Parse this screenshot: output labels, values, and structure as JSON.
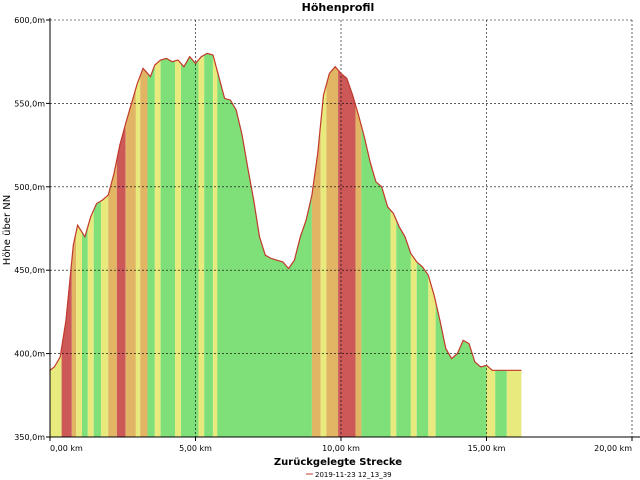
{
  "chart_data": {
    "type": "area",
    "title": "Höhenprofil",
    "xlabel": "Zurückgelegte Strecke",
    "ylabel": "Höhe über NN",
    "xlim": [
      0,
      20
    ],
    "ylim": [
      350,
      600
    ],
    "x_ticks": [
      0,
      5,
      10,
      15,
      20
    ],
    "x_tick_labels": [
      "0,00 km",
      "5,00 km",
      "10,00 km",
      "15,00 km",
      "20,00 km"
    ],
    "y_ticks": [
      350,
      400,
      450,
      500,
      550,
      600
    ],
    "y_tick_labels": [
      "350,0m",
      "400,0m",
      "450,0m",
      "500,0m",
      "550,0m",
      "600,0m"
    ],
    "grid": true,
    "legend": {
      "position": "bottom-center",
      "entries": [
        {
          "label": "2019-11-23 12_13_39",
          "color": "#c0392b"
        }
      ]
    },
    "colors": {
      "line": "#c0392b",
      "green": "#7fe07a",
      "yellow": "#e8ea7e",
      "red": "#cc5858",
      "orange": "#e2b564"
    },
    "series": [
      {
        "x": [
          0.0,
          0.15,
          0.35,
          0.55,
          0.8,
          0.95,
          1.2,
          1.4,
          1.6,
          1.8,
          2.0,
          2.2,
          2.4,
          2.6,
          2.8,
          3.0,
          3.2,
          3.45,
          3.6,
          3.8,
          4.0,
          4.2,
          4.4,
          4.6,
          4.8,
          5.0,
          5.2,
          5.4,
          5.6,
          5.8,
          6.0,
          6.2,
          6.4,
          6.6,
          6.8,
          7.0,
          7.2,
          7.4,
          7.6,
          7.8,
          8.0,
          8.2,
          8.4,
          8.6,
          8.8,
          9.0,
          9.2,
          9.4,
          9.6,
          9.8,
          10.0,
          10.2,
          10.4,
          10.6,
          10.8,
          11.0,
          11.2,
          11.4,
          11.6,
          11.8,
          12.0,
          12.2,
          12.4,
          12.6,
          12.8,
          13.0,
          13.2,
          13.4,
          13.6,
          13.8,
          14.0,
          14.2,
          14.4,
          14.6,
          14.8,
          15.0,
          15.2,
          15.4,
          15.6,
          15.8,
          16.0,
          16.2
        ],
        "y": [
          390,
          392,
          398,
          420,
          465,
          477,
          470,
          482,
          490,
          492,
          495,
          508,
          525,
          538,
          550,
          562,
          571,
          566,
          573,
          576,
          577,
          575,
          576,
          572,
          578,
          574,
          578,
          580,
          579,
          566,
          553,
          552,
          546,
          531,
          511,
          492,
          470,
          459,
          457,
          456,
          455,
          451,
          456,
          470,
          480,
          495,
          520,
          555,
          568,
          572,
          568,
          565,
          555,
          543,
          530,
          515,
          503,
          500,
          488,
          484,
          476,
          470,
          460,
          455,
          452,
          447,
          435,
          420,
          403,
          397,
          400,
          408,
          406,
          395,
          392,
          393,
          390,
          390,
          390,
          390,
          390,
          390
        ],
        "color_bands": [
          {
            "x0": 0.0,
            "x1": 0.4,
            "c": "yellow"
          },
          {
            "x0": 0.4,
            "x1": 0.75,
            "c": "red"
          },
          {
            "x0": 0.75,
            "x1": 0.9,
            "c": "orange"
          },
          {
            "x0": 0.9,
            "x1": 1.1,
            "c": "yellow"
          },
          {
            "x0": 1.1,
            "x1": 1.3,
            "c": "green"
          },
          {
            "x0": 1.3,
            "x1": 1.5,
            "c": "yellow"
          },
          {
            "x0": 1.5,
            "x1": 1.75,
            "c": "green"
          },
          {
            "x0": 1.75,
            "x1": 2.0,
            "c": "yellow"
          },
          {
            "x0": 2.0,
            "x1": 2.3,
            "c": "orange"
          },
          {
            "x0": 2.3,
            "x1": 2.6,
            "c": "red"
          },
          {
            "x0": 2.6,
            "x1": 2.95,
            "c": "orange"
          },
          {
            "x0": 2.95,
            "x1": 3.1,
            "c": "yellow"
          },
          {
            "x0": 3.1,
            "x1": 3.35,
            "c": "orange"
          },
          {
            "x0": 3.35,
            "x1": 3.6,
            "c": "green"
          },
          {
            "x0": 3.6,
            "x1": 3.8,
            "c": "yellow"
          },
          {
            "x0": 3.8,
            "x1": 4.3,
            "c": "green"
          },
          {
            "x0": 4.3,
            "x1": 4.5,
            "c": "yellow"
          },
          {
            "x0": 4.5,
            "x1": 5.1,
            "c": "green"
          },
          {
            "x0": 5.1,
            "x1": 5.3,
            "c": "yellow"
          },
          {
            "x0": 5.3,
            "x1": 5.6,
            "c": "green"
          },
          {
            "x0": 5.6,
            "x1": 5.75,
            "c": "yellow"
          },
          {
            "x0": 5.75,
            "x1": 9.0,
            "c": "green"
          },
          {
            "x0": 9.0,
            "x1": 9.3,
            "c": "orange"
          },
          {
            "x0": 9.3,
            "x1": 9.5,
            "c": "yellow"
          },
          {
            "x0": 9.5,
            "x1": 9.9,
            "c": "orange"
          },
          {
            "x0": 9.9,
            "x1": 10.5,
            "c": "red"
          },
          {
            "x0": 10.5,
            "x1": 10.7,
            "c": "orange"
          },
          {
            "x0": 10.7,
            "x1": 11.7,
            "c": "green"
          },
          {
            "x0": 11.7,
            "x1": 11.9,
            "c": "yellow"
          },
          {
            "x0": 11.9,
            "x1": 12.4,
            "c": "green"
          },
          {
            "x0": 12.4,
            "x1": 12.6,
            "c": "yellow"
          },
          {
            "x0": 12.6,
            "x1": 13.0,
            "c": "green"
          },
          {
            "x0": 13.0,
            "x1": 13.25,
            "c": "yellow"
          },
          {
            "x0": 13.25,
            "x1": 15.0,
            "c": "green"
          },
          {
            "x0": 15.0,
            "x1": 15.3,
            "c": "yellow"
          },
          {
            "x0": 15.3,
            "x1": 15.7,
            "c": "green"
          },
          {
            "x0": 15.7,
            "x1": 16.2,
            "c": "yellow"
          }
        ]
      }
    ]
  }
}
